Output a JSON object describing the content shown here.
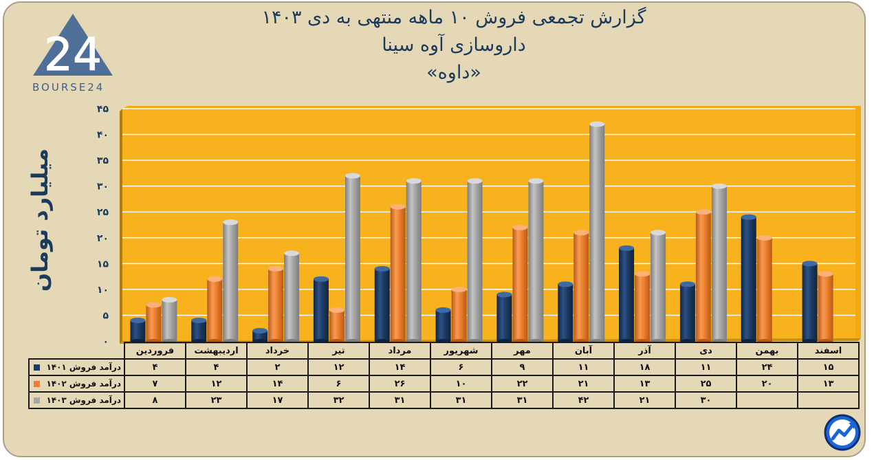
{
  "title_lines": [
    "گزارش تجمعی فروش ۱۰ ماهه منتهی به دی ۱۴۰۳",
    "داروسازی آوه سینا",
    "«داوه»"
  ],
  "logo": {
    "text": "BOURSE24",
    "mark": "24"
  },
  "colors": {
    "background": "#e4d8b7",
    "plot_bg": "#f7b21d",
    "s1401": "#1d3c63",
    "s1402": "#ed7f2e",
    "s1403": "#a6a6a6",
    "title": "#1b3a5c"
  },
  "chart_data": {
    "type": "bar",
    "ylabel": "میلیارد تومان",
    "ylim": [
      0,
      45
    ],
    "yticks": [
      "۰",
      "۵",
      "۱۰",
      "۱۵",
      "۲۰",
      "۲۵",
      "۳۰",
      "۳۵",
      "۴۰",
      "۴۵"
    ],
    "categories": [
      "فروردین",
      "اردیبهشت",
      "خرداد",
      "تیر",
      "مرداد",
      "شهریور",
      "مهر",
      "آبان",
      "آذر",
      "دی",
      "بهمن",
      "اسفند"
    ],
    "series": [
      {
        "name": "درآمد فروش ۱۴۰۱",
        "values": [
          4,
          4,
          2,
          12,
          14,
          6,
          9,
          11,
          18,
          11,
          24,
          15
        ],
        "labels": [
          "۴",
          "۴",
          "۲",
          "۱۲",
          "۱۴",
          "۶",
          "۹",
          "۱۱",
          "۱۸",
          "۱۱",
          "۲۴",
          "۱۵"
        ]
      },
      {
        "name": "درآمد فروش ۱۴۰۲",
        "values": [
          7,
          12,
          14,
          6,
          26,
          10,
          22,
          21,
          13,
          25,
          20,
          13
        ],
        "labels": [
          "۷",
          "۱۲",
          "۱۴",
          "۶",
          "۲۶",
          "۱۰",
          "۲۲",
          "۲۱",
          "۱۳",
          "۲۵",
          "۲۰",
          "۱۳"
        ]
      },
      {
        "name": "درآمد فروش ۱۴۰۳",
        "values": [
          8,
          23,
          17,
          32,
          31,
          31,
          31,
          42,
          21,
          30,
          null,
          null
        ],
        "labels": [
          "۸",
          "۲۳",
          "۱۷",
          "۳۲",
          "۳۱",
          "۳۱",
          "۳۱",
          "۴۲",
          "۲۱",
          "۳۰",
          "",
          ""
        ]
      }
    ],
    "grid": true,
    "legend": "data-table-left"
  }
}
